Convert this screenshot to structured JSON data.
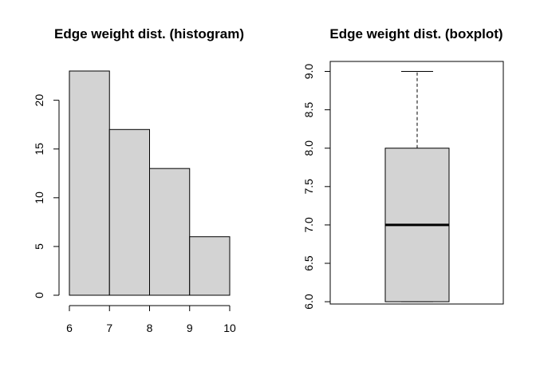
{
  "chart_data": [
    {
      "type": "histogram",
      "title": "Edge weight dist. (histogram)",
      "xlabel": "",
      "ylabel": "",
      "bins": [
        {
          "from": 6,
          "to": 7,
          "count": 23
        },
        {
          "from": 7,
          "to": 8,
          "count": 17
        },
        {
          "from": 8,
          "to": 9,
          "count": 13
        },
        {
          "from": 9,
          "to": 10,
          "count": 6
        }
      ],
      "x_ticks": [
        "6",
        "7",
        "8",
        "9",
        "10"
      ],
      "y_ticks": [
        "0",
        "5",
        "10",
        "15",
        "20"
      ],
      "xlim": [
        6,
        10
      ],
      "ylim": [
        0,
        23
      ],
      "bar_color": "#d3d3d3"
    },
    {
      "type": "boxplot",
      "title": "Edge weight dist. (boxplot)",
      "xlabel": "",
      "ylabel": "",
      "min": 6.0,
      "q1": 6.0,
      "median": 7.0,
      "q3": 8.0,
      "max": 9.0,
      "y_ticks": [
        "6.0",
        "6.5",
        "7.0",
        "7.5",
        "8.0",
        "8.5",
        "9.0"
      ],
      "ylim": [
        5.97,
        9.13
      ],
      "box_color": "#d3d3d3"
    }
  ]
}
